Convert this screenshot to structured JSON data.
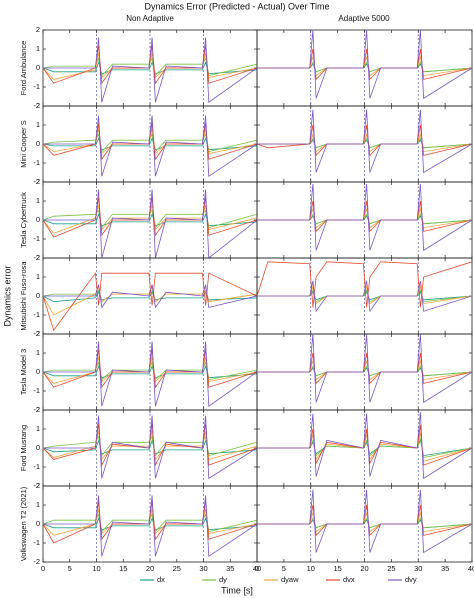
{
  "chart_data": {
    "type": "line",
    "title": "Dynamics Error (Predicted - Actual) Over Time",
    "columns": [
      "Non Adaptive",
      "Adaptive 5000"
    ],
    "rows": [
      "Ford Ambulance",
      "Mini Cooper S",
      "Tesla Cybertruck",
      "Mitsubishi Fuso-rosa",
      "Tesla Model 3",
      "Ford Mustang",
      "Volkswagen T2 (2021)"
    ],
    "xlabel": "Time [s]",
    "ylabel": "Dynamics error",
    "xlim": [
      0,
      40
    ],
    "xticks": [
      0,
      5,
      10,
      15,
      20,
      25,
      30,
      35,
      40
    ],
    "ylim": [
      -2,
      2
    ],
    "yticks": [
      -2,
      -1,
      0,
      1,
      2
    ],
    "event_lines": [
      10,
      20,
      30
    ],
    "series": [
      {
        "name": "dx",
        "color": "#1a9f8a"
      },
      {
        "name": "dy",
        "color": "#7cc242"
      },
      {
        "name": "dyaw",
        "color": "#f2a33a"
      },
      {
        "name": "dvx",
        "color": "#e5482a"
      },
      {
        "name": "dvy",
        "color": "#7a55c4"
      }
    ],
    "x": [
      0,
      2,
      9.8,
      10.4,
      11,
      13,
      19.8,
      20.4,
      21,
      23,
      29.8,
      30.4,
      31,
      40
    ],
    "panels": [
      {
        "values": [
          [
            0,
            -0.2,
            -0.2,
            0.3,
            -0.3,
            -0.1,
            -0.1,
            0.3,
            -0.3,
            -0.1,
            -0.1,
            0.3,
            -0.3,
            -0.1
          ],
          [
            0,
            0.1,
            0.1,
            0.5,
            -0.4,
            0.2,
            0.2,
            0.5,
            -0.4,
            0.2,
            0.2,
            0.5,
            -0.4,
            0.2
          ],
          [
            0,
            -0.6,
            -0.1,
            0.8,
            -0.5,
            0,
            0,
            0.8,
            -0.5,
            0,
            0,
            0.8,
            -0.5,
            0
          ],
          [
            0,
            -0.8,
            0,
            1.2,
            -0.8,
            0,
            0,
            1.2,
            -0.8,
            0,
            0,
            1.2,
            -0.8,
            0
          ],
          [
            0,
            0,
            0,
            1.6,
            -1.8,
            0.1,
            0,
            1.6,
            -1.8,
            0.1,
            0,
            1.6,
            -1.8,
            0
          ]
        ]
      },
      {
        "values": [
          [
            0,
            0,
            0,
            0.2,
            -0.2,
            0,
            0,
            0.2,
            -0.2,
            0,
            0,
            0.2,
            -0.2,
            0
          ],
          [
            0,
            0,
            0,
            0.3,
            -0.2,
            0,
            0,
            0.3,
            -0.2,
            0,
            0,
            0.3,
            -0.2,
            0
          ],
          [
            0,
            0,
            0,
            0.6,
            -0.4,
            0,
            0,
            0.6,
            -0.4,
            0,
            0,
            0.6,
            -0.4,
            0
          ],
          [
            0,
            0,
            0,
            1,
            -0.6,
            0,
            0,
            1,
            -0.6,
            0,
            0,
            1,
            -0.6,
            0
          ],
          [
            0,
            0,
            0,
            2,
            -1.6,
            0,
            0,
            2,
            -1.6,
            0,
            0,
            2,
            -1.6,
            0
          ]
        ]
      },
      {
        "values": [
          [
            0,
            -0.1,
            -0.1,
            0.3,
            -0.3,
            -0.1,
            -0.1,
            0.3,
            -0.3,
            -0.1,
            -0.1,
            0.3,
            -0.3,
            -0.1
          ],
          [
            0,
            0.1,
            0.2,
            0.5,
            -0.4,
            0.2,
            0.2,
            0.5,
            -0.4,
            0.2,
            0.2,
            0.5,
            -0.4,
            0.2
          ],
          [
            0,
            -0.4,
            0,
            0.8,
            -0.5,
            0,
            0,
            0.8,
            -0.5,
            0,
            0,
            0.8,
            -0.5,
            0
          ],
          [
            0,
            -0.6,
            0,
            1.1,
            -0.8,
            0,
            0,
            1.1,
            -0.8,
            0,
            0,
            1.1,
            -0.8,
            0
          ],
          [
            0,
            0,
            0,
            1.5,
            -1.7,
            0.1,
            0,
            1.5,
            -1.7,
            0.1,
            0,
            1.5,
            -1.7,
            0
          ]
        ]
      },
      {
        "values": [
          [
            0,
            0,
            0,
            0.2,
            -0.2,
            0,
            0,
            0.2,
            -0.2,
            0,
            0,
            0.2,
            -0.2,
            0
          ],
          [
            0,
            0,
            0,
            0.3,
            -0.2,
            0,
            0,
            0.3,
            -0.2,
            0,
            0,
            0.3,
            -0.2,
            0
          ],
          [
            0,
            0,
            0,
            0.5,
            -0.4,
            0,
            0,
            0.5,
            -0.4,
            0,
            0,
            0.5,
            -0.4,
            0
          ],
          [
            0,
            -0.2,
            0,
            1,
            -0.6,
            0,
            0,
            1,
            -0.6,
            0,
            0,
            1,
            -0.6,
            0
          ],
          [
            0,
            0,
            0,
            1.8,
            -1.5,
            0,
            0,
            1.8,
            -1.5,
            0,
            0,
            1.8,
            -1.5,
            0
          ]
        ]
      },
      {
        "values": [
          [
            0,
            -0.2,
            -0.2,
            0.3,
            -0.3,
            -0.1,
            -0.1,
            0.3,
            -0.3,
            -0.1,
            -0.1,
            0.3,
            -0.3,
            -0.1
          ],
          [
            0,
            0.2,
            0.3,
            0.5,
            -0.4,
            0.3,
            0.3,
            0.5,
            -0.4,
            0.3,
            0.3,
            0.5,
            -0.4,
            0.3
          ],
          [
            0,
            -0.7,
            0.1,
            0.8,
            -0.5,
            0.1,
            0.1,
            0.8,
            -0.5,
            0.1,
            0.1,
            0.8,
            -0.5,
            0.1
          ],
          [
            0,
            -0.9,
            0,
            1.2,
            -0.8,
            0,
            0,
            1.2,
            -0.8,
            0,
            0,
            1.2,
            -0.8,
            0
          ],
          [
            0,
            0,
            0,
            1.6,
            -2,
            0.1,
            0,
            1.6,
            -2,
            0.1,
            0,
            1.6,
            -2,
            0
          ]
        ]
      },
      {
        "values": [
          [
            0,
            0,
            0,
            0.2,
            -0.2,
            0,
            0,
            0.2,
            -0.2,
            0,
            0,
            0.2,
            -0.2,
            0
          ],
          [
            0,
            0,
            0,
            0.3,
            -0.2,
            0,
            0,
            0.3,
            -0.2,
            0,
            0,
            0.3,
            -0.2,
            0
          ],
          [
            0,
            0,
            0,
            0.6,
            -0.4,
            0,
            0,
            0.6,
            -0.4,
            0,
            0,
            0.6,
            -0.4,
            0
          ],
          [
            0,
            0,
            0,
            1,
            -0.6,
            0,
            0,
            1,
            -0.6,
            0,
            0,
            1,
            -0.6,
            0
          ],
          [
            0,
            0,
            0,
            1.9,
            -1.6,
            0,
            0,
            1.9,
            -1.6,
            0,
            0,
            1.9,
            -1.6,
            0
          ]
        ]
      },
      {
        "values": [
          [
            0,
            -0.3,
            -0.1,
            0.2,
            -0.2,
            -0.1,
            -0.1,
            0.2,
            -0.2,
            -0.1,
            -0.1,
            0.2,
            -0.2,
            -0.1
          ],
          [
            0,
            0.1,
            0.1,
            0.3,
            -0.3,
            0.1,
            0.1,
            0.3,
            -0.3,
            0.1,
            0.1,
            0.3,
            -0.3,
            0.1
          ],
          [
            0,
            -1,
            0.1,
            0.5,
            -0.3,
            0.1,
            0.1,
            0.5,
            -0.3,
            0.1,
            0.1,
            0.5,
            -0.3,
            0.1
          ],
          [
            0,
            -1.8,
            1.2,
            -0.5,
            1.2,
            1.2,
            1.2,
            -0.5,
            1.2,
            1.2,
            1.2,
            -0.5,
            1.2,
            0
          ],
          [
            0,
            0,
            0,
            0.6,
            -0.6,
            0.2,
            0,
            0.6,
            -0.6,
            0.2,
            0,
            0.6,
            -0.6,
            0
          ]
        ]
      },
      {
        "values": [
          [
            0,
            0,
            0,
            0.2,
            -0.2,
            0,
            0,
            0.2,
            -0.2,
            0,
            0,
            0.2,
            -0.2,
            0
          ],
          [
            0,
            0,
            0,
            0.3,
            -0.3,
            0,
            0,
            0.3,
            -0.3,
            0,
            0,
            0.3,
            -0.3,
            0
          ],
          [
            0,
            0,
            0,
            0.5,
            -0.4,
            0,
            0,
            0.5,
            -0.4,
            0,
            0,
            0.5,
            -0.4,
            0
          ],
          [
            0,
            1.8,
            1.7,
            -0.6,
            1,
            1.8,
            1.7,
            -0.6,
            1,
            1.8,
            1.7,
            -0.6,
            1,
            1.8
          ],
          [
            0,
            0,
            0,
            0.8,
            -0.8,
            0,
            0,
            0.8,
            -0.8,
            0,
            0,
            0.8,
            -0.8,
            0
          ]
        ]
      },
      {
        "values": [
          [
            0,
            -0.2,
            -0.2,
            0.3,
            -0.3,
            -0.1,
            -0.1,
            0.3,
            -0.3,
            -0.1,
            -0.1,
            0.3,
            -0.3,
            -0.1
          ],
          [
            0,
            0.1,
            0.1,
            0.5,
            -0.4,
            0.1,
            0.1,
            0.5,
            -0.4,
            0.1,
            0.1,
            0.5,
            -0.4,
            0.1
          ],
          [
            0,
            -0.6,
            0,
            0.8,
            -0.5,
            0,
            0,
            0.8,
            -0.5,
            0,
            0,
            0.8,
            -0.5,
            0
          ],
          [
            0,
            -0.8,
            0,
            1.2,
            -0.8,
            0,
            0,
            1.2,
            -0.8,
            0,
            0,
            1.2,
            -0.8,
            0
          ],
          [
            0,
            0,
            0,
            1.6,
            -1.8,
            0.1,
            0,
            1.6,
            -1.8,
            0.1,
            0,
            1.6,
            -1.8,
            0
          ]
        ]
      },
      {
        "values": [
          [
            0,
            0,
            0,
            0.2,
            -0.2,
            0,
            0,
            0.2,
            -0.2,
            0,
            0,
            0.2,
            -0.2,
            0
          ],
          [
            0,
            0,
            0,
            0.3,
            -0.2,
            0,
            0,
            0.3,
            -0.2,
            0,
            0,
            0.3,
            -0.2,
            0
          ],
          [
            0,
            0,
            0,
            0.6,
            -0.4,
            0,
            0,
            0.6,
            -0.4,
            0,
            0,
            0.6,
            -0.4,
            0
          ],
          [
            0,
            0,
            0,
            1,
            -0.6,
            0,
            0,
            1,
            -0.6,
            0,
            0,
            1,
            -0.6,
            0
          ],
          [
            0,
            0,
            0,
            2,
            -1.6,
            0,
            0,
            2,
            -1.6,
            0,
            0,
            2,
            -1.6,
            0
          ]
        ]
      },
      {
        "values": [
          [
            0,
            -0.2,
            -0.1,
            0.4,
            -0.3,
            -0.1,
            -0.1,
            0.4,
            -0.3,
            -0.1,
            -0.1,
            0.4,
            -0.3,
            -0.1
          ],
          [
            0,
            0.1,
            0.3,
            0.6,
            -0.4,
            0.3,
            0.3,
            0.6,
            -0.4,
            0.3,
            0.3,
            0.6,
            -0.4,
            0.3
          ],
          [
            0,
            -0.5,
            0.1,
            0.9,
            -0.6,
            0.1,
            0.1,
            0.9,
            -0.6,
            0.1,
            0.1,
            0.9,
            -0.6,
            0.1
          ],
          [
            0,
            -0.6,
            0,
            1.3,
            -0.9,
            0.2,
            0,
            1.3,
            -0.9,
            0.2,
            0,
            1.3,
            -0.9,
            0
          ],
          [
            0,
            0,
            0,
            1.7,
            -1.6,
            0.3,
            0,
            1.7,
            -1.6,
            0.3,
            0,
            1.7,
            -1.6,
            0
          ]
        ]
      },
      {
        "values": [
          [
            0,
            0,
            0,
            0.3,
            -0.3,
            0.1,
            0,
            0.3,
            -0.3,
            0.1,
            0,
            0.4,
            -0.4,
            0
          ],
          [
            0,
            0,
            0,
            0.4,
            -0.4,
            0.1,
            0,
            0.4,
            -0.4,
            0.1,
            0,
            0.5,
            -0.5,
            0
          ],
          [
            0,
            0,
            0,
            0.7,
            -0.6,
            0.2,
            0,
            0.7,
            -0.6,
            0.2,
            0,
            0.8,
            -0.7,
            0
          ],
          [
            0,
            0,
            0,
            1,
            -0.8,
            0.3,
            0,
            1,
            -0.8,
            0.3,
            0,
            1.2,
            -0.9,
            0
          ],
          [
            0,
            0,
            0,
            1.8,
            -1.5,
            0.4,
            0,
            1.8,
            -1.5,
            0.4,
            0,
            1.9,
            -1.6,
            0
          ]
        ]
      },
      {
        "values": [
          [
            0,
            -0.2,
            -0.2,
            0.3,
            -0.3,
            -0.1,
            -0.1,
            0.3,
            -0.3,
            -0.1,
            -0.1,
            0.3,
            -0.3,
            -0.1
          ],
          [
            0,
            0.2,
            0.2,
            0.5,
            -0.4,
            0.2,
            0.2,
            0.5,
            -0.4,
            0.2,
            0.2,
            0.5,
            -0.4,
            0.2
          ],
          [
            0,
            -0.6,
            0,
            0.8,
            -0.5,
            0,
            0,
            0.8,
            -0.5,
            0,
            0,
            0.8,
            -0.5,
            0
          ],
          [
            0,
            -1,
            0,
            1.2,
            -0.8,
            0,
            0,
            1.2,
            -0.8,
            0,
            0,
            1.2,
            -0.8,
            0
          ],
          [
            0,
            0,
            0,
            1.5,
            -1.7,
            0.1,
            0,
            1.5,
            -1.7,
            0.1,
            0,
            1.5,
            -1.7,
            0
          ]
        ]
      },
      {
        "values": [
          [
            0,
            0,
            0,
            0.2,
            -0.2,
            0,
            0,
            0.2,
            -0.2,
            0,
            0,
            0.2,
            -0.2,
            0
          ],
          [
            0,
            0,
            0,
            0.3,
            -0.2,
            0,
            0,
            0.3,
            -0.2,
            0,
            0,
            0.3,
            -0.2,
            0
          ],
          [
            0,
            0,
            0,
            0.6,
            -0.4,
            0,
            0,
            0.6,
            -0.4,
            0,
            0,
            0.6,
            -0.4,
            0
          ],
          [
            0,
            0,
            0,
            1,
            -0.6,
            0,
            0,
            1,
            -0.6,
            0,
            0,
            1,
            -0.6,
            0
          ],
          [
            0,
            0,
            0,
            1.8,
            -1.5,
            0,
            0,
            1.8,
            -1.5,
            0,
            0,
            1.8,
            -1.5,
            0
          ]
        ]
      }
    ]
  }
}
